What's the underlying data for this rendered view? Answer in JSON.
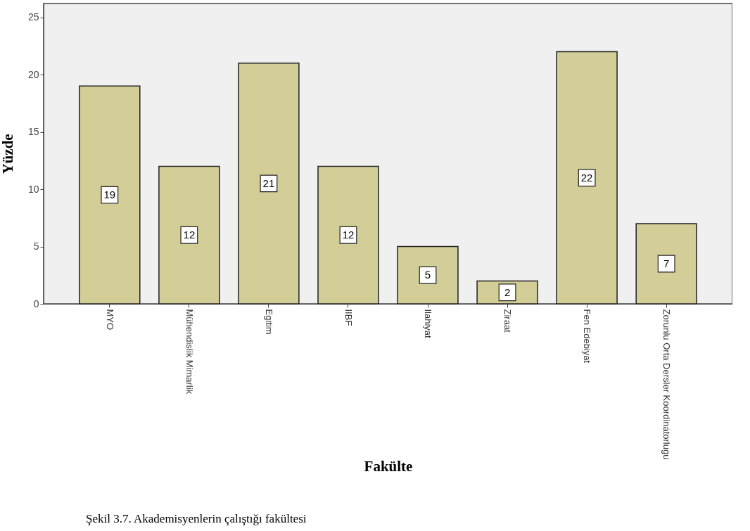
{
  "chart_data": {
    "type": "bar",
    "xlabel": "Fakülte",
    "ylabel": "Yüzde",
    "categories": [
      "MYO",
      "Mühendislik Mimarlik",
      "Egitim",
      "IIBF",
      "Ilahiyat",
      "Ziraat",
      "Fen Edebiyat",
      "Zorunlu Orta Dersler Koordinatorlugu"
    ],
    "values": [
      19,
      12,
      21,
      12,
      5,
      2,
      22,
      7
    ],
    "color": "#d3ce97",
    "ylim": [
      0,
      26.2
    ],
    "yticks": [
      0,
      5,
      10,
      15,
      20,
      25
    ],
    "grid": false,
    "data_labels": true,
    "annotations": [
      "Şekil 3.7. Akademisyenlerin çalıştığı fakültesi"
    ]
  }
}
